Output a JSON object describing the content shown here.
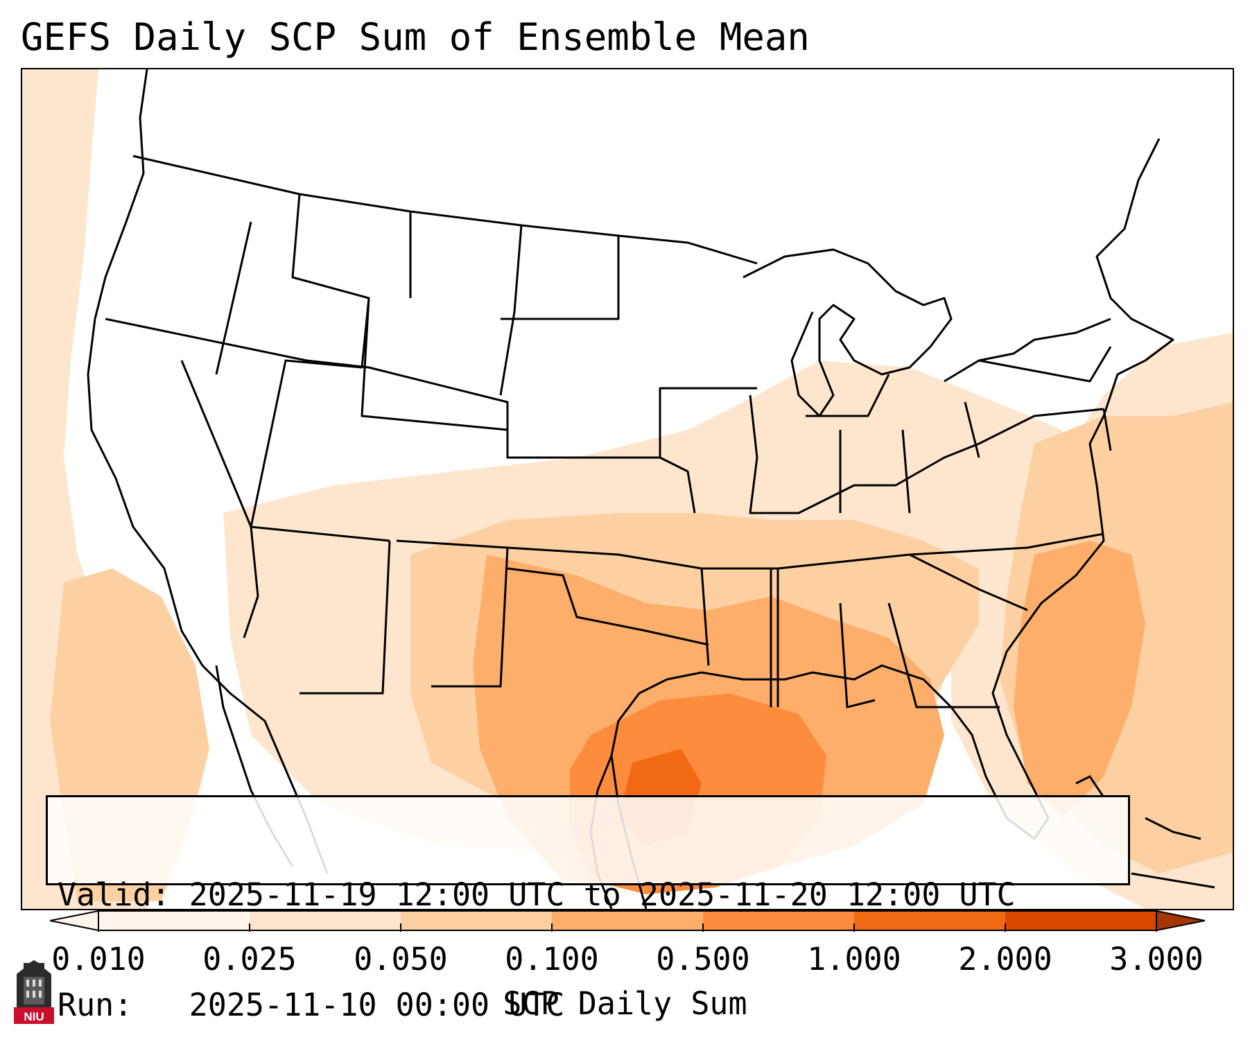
{
  "title": "GEFS Daily SCP Sum of Ensemble Mean",
  "info": {
    "valid_line": "Valid: 2025-11-19 12:00 UTC to 2025-11-20 12:00 UTC",
    "run_line": "Run:   2025-11-10 00:00 UTC"
  },
  "colorbar": {
    "label": "SCP Daily Sum",
    "ticks": [
      "0.010",
      "0.025",
      "0.050",
      "0.100",
      "0.500",
      "1.000",
      "2.000",
      "3.000"
    ],
    "colors": [
      "#fff5eb",
      "#fee6ce",
      "#fdd0a2",
      "#fdae6b",
      "#fd8d3c",
      "#f16913",
      "#d94801"
    ],
    "extend": "both"
  },
  "legend_colors": {
    "low": "#fff5eb",
    "light": "#fee6ce",
    "medium": "#fdd0a2",
    "moderate": "#fdae6b",
    "high": "#fd8d3c",
    "very_high": "#f16913"
  },
  "logo": {
    "text": "NIU",
    "color": "#c8102e"
  }
}
